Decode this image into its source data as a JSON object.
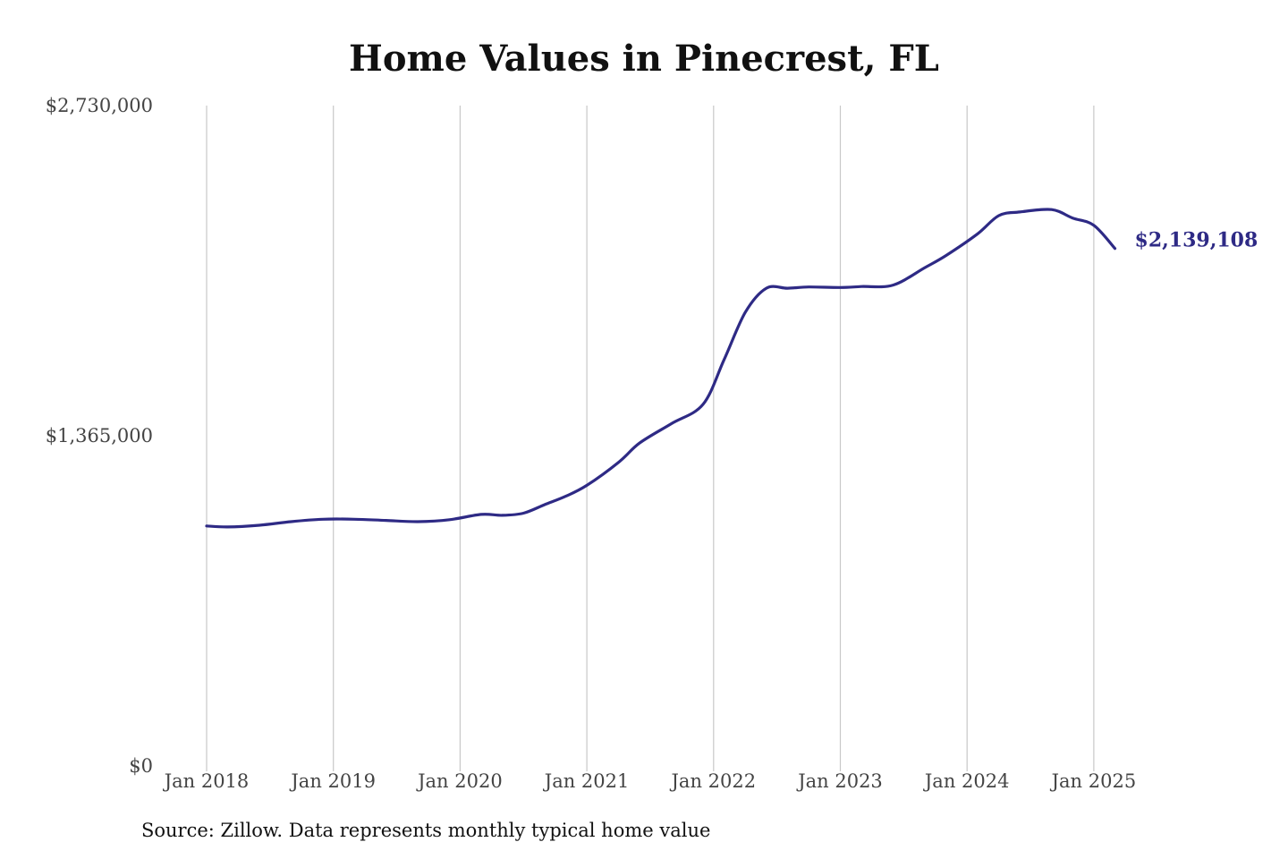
{
  "chart_data": {
    "type": "line",
    "title": "Home Values in Pinecrest, FL",
    "xlabel": "",
    "ylabel": "",
    "ylim": [
      0,
      2730000
    ],
    "y_ticks": [
      "$0",
      "$1,365,000",
      "$2,730,000"
    ],
    "y_tick_values": [
      0,
      1365000,
      2730000
    ],
    "x_ticks": [
      "Jan 2018",
      "Jan 2019",
      "Jan 2020",
      "Jan 2021",
      "Jan 2022",
      "Jan 2023",
      "Jan 2024",
      "Jan 2025"
    ],
    "x_tick_dates": [
      "2018-01",
      "2019-01",
      "2020-01",
      "2021-01",
      "2022-01",
      "2023-01",
      "2024-01",
      "2025-01"
    ],
    "grid": "vertical",
    "line_color": "#2e2a85",
    "end_label": "$2,139,108",
    "series": [
      {
        "x": [
          "2018-01",
          "2018-03",
          "2018-06",
          "2018-09",
          "2018-12",
          "2019-03",
          "2019-06",
          "2019-09",
          "2019-12",
          "2020-03",
          "2020-05",
          "2020-07",
          "2020-09",
          "2020-11",
          "2021-01",
          "2021-04",
          "2021-06",
          "2021-09",
          "2021-12",
          "2022-02",
          "2022-04",
          "2022-06",
          "2022-08",
          "2022-10",
          "2023-01",
          "2023-03",
          "2023-06",
          "2023-09",
          "2023-11",
          "2024-02",
          "2024-04",
          "2024-06",
          "2024-09",
          "2024-11",
          "2025-01",
          "2025-03"
        ],
        "values": [
          992000,
          988000,
          995000,
          1010000,
          1020000,
          1020000,
          1015000,
          1010000,
          1018000,
          1040000,
          1036000,
          1045000,
          1080000,
          1115000,
          1160000,
          1255000,
          1335000,
          1415000,
          1495000,
          1680000,
          1875000,
          1975000,
          1975000,
          1980000,
          1978000,
          1982000,
          1988000,
          2060000,
          2110000,
          2200000,
          2275000,
          2290000,
          2300000,
          2265000,
          2235000,
          2139108
        ]
      }
    ]
  },
  "source_note": "Source: Zillow. Data represents monthly typical home value"
}
